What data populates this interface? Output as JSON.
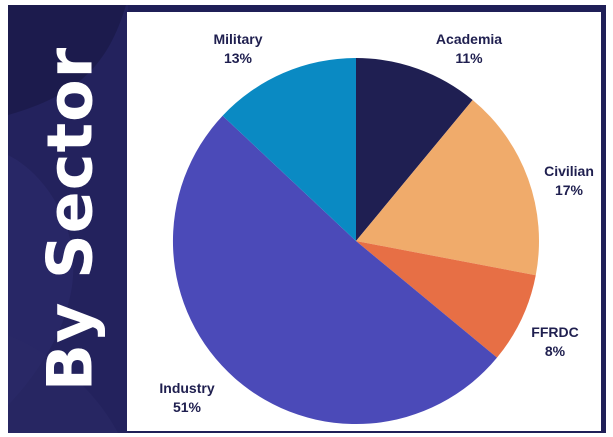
{
  "sidebar": {
    "title": "By Sector"
  },
  "colors": {
    "frame": "#1f1f57",
    "panel": "#ffffff"
  },
  "chart_data": {
    "type": "pie",
    "title": "",
    "slices": [
      {
        "label": "Academia",
        "pct_label": "11%",
        "value": 11,
        "color": "#1f1f52"
      },
      {
        "label": "Civilian",
        "pct_label": "17%",
        "value": 17,
        "color": "#f0ab6b"
      },
      {
        "label": "FFRDC",
        "pct_label": "8%",
        "value": 8,
        "color": "#e76f45"
      },
      {
        "label": "Industry",
        "pct_label": "51%",
        "value": 51,
        "color": "#4b4ab8"
      },
      {
        "label": "Military",
        "pct_label": "13%",
        "value": 13,
        "color": "#0a8ac3"
      }
    ]
  }
}
